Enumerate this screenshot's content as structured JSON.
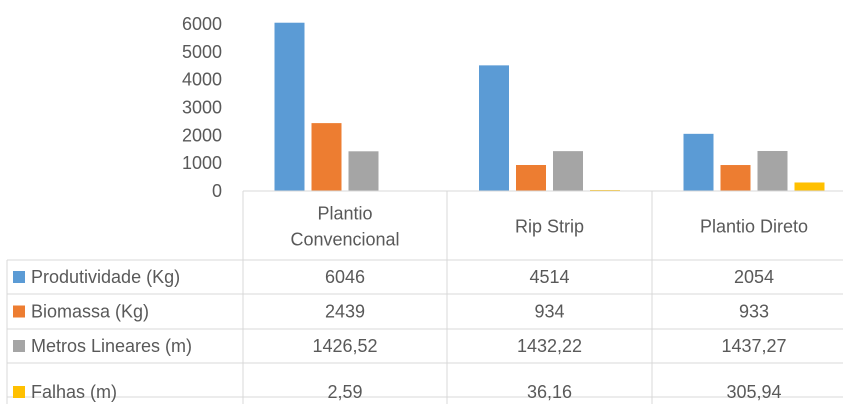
{
  "chart_data": {
    "type": "bar",
    "categories": [
      "Plantio Convencional",
      "Rip Strip",
      "Plantio Direto"
    ],
    "category_lines": [
      [
        "Plantio",
        "Convencional"
      ],
      [
        "Rip Strip"
      ],
      [
        "Plantio Direto"
      ]
    ],
    "series": [
      {
        "name": "Produtividade (Kg)",
        "color": "#5B9BD5",
        "values": [
          6046,
          4514,
          2054
        ],
        "labels": [
          "6046",
          "4514",
          "2054"
        ]
      },
      {
        "name": "Biomassa (Kg)",
        "color": "#ED7D31",
        "values": [
          2439,
          934,
          933
        ],
        "labels": [
          "2439",
          "934",
          "933"
        ]
      },
      {
        "name": "Metros Lineares (m)",
        "color": "#A5A5A5",
        "values": [
          1426.52,
          1432.22,
          1437.27
        ],
        "labels": [
          "1426,52",
          "1432,22",
          "1437,27"
        ]
      },
      {
        "name": "Falhas (m)",
        "color": "#FFC000",
        "values": [
          2.59,
          36.16,
          305.94
        ],
        "labels": [
          "2,59",
          "36,16",
          "305,94"
        ]
      }
    ],
    "y_ticks": [
      "6000",
      "5000",
      "4000",
      "3000",
      "2000",
      "1000",
      "0"
    ],
    "ylim": [
      0,
      6000
    ],
    "grid": false,
    "legend": "data-table",
    "title": "",
    "xlabel": "",
    "ylabel": ""
  }
}
